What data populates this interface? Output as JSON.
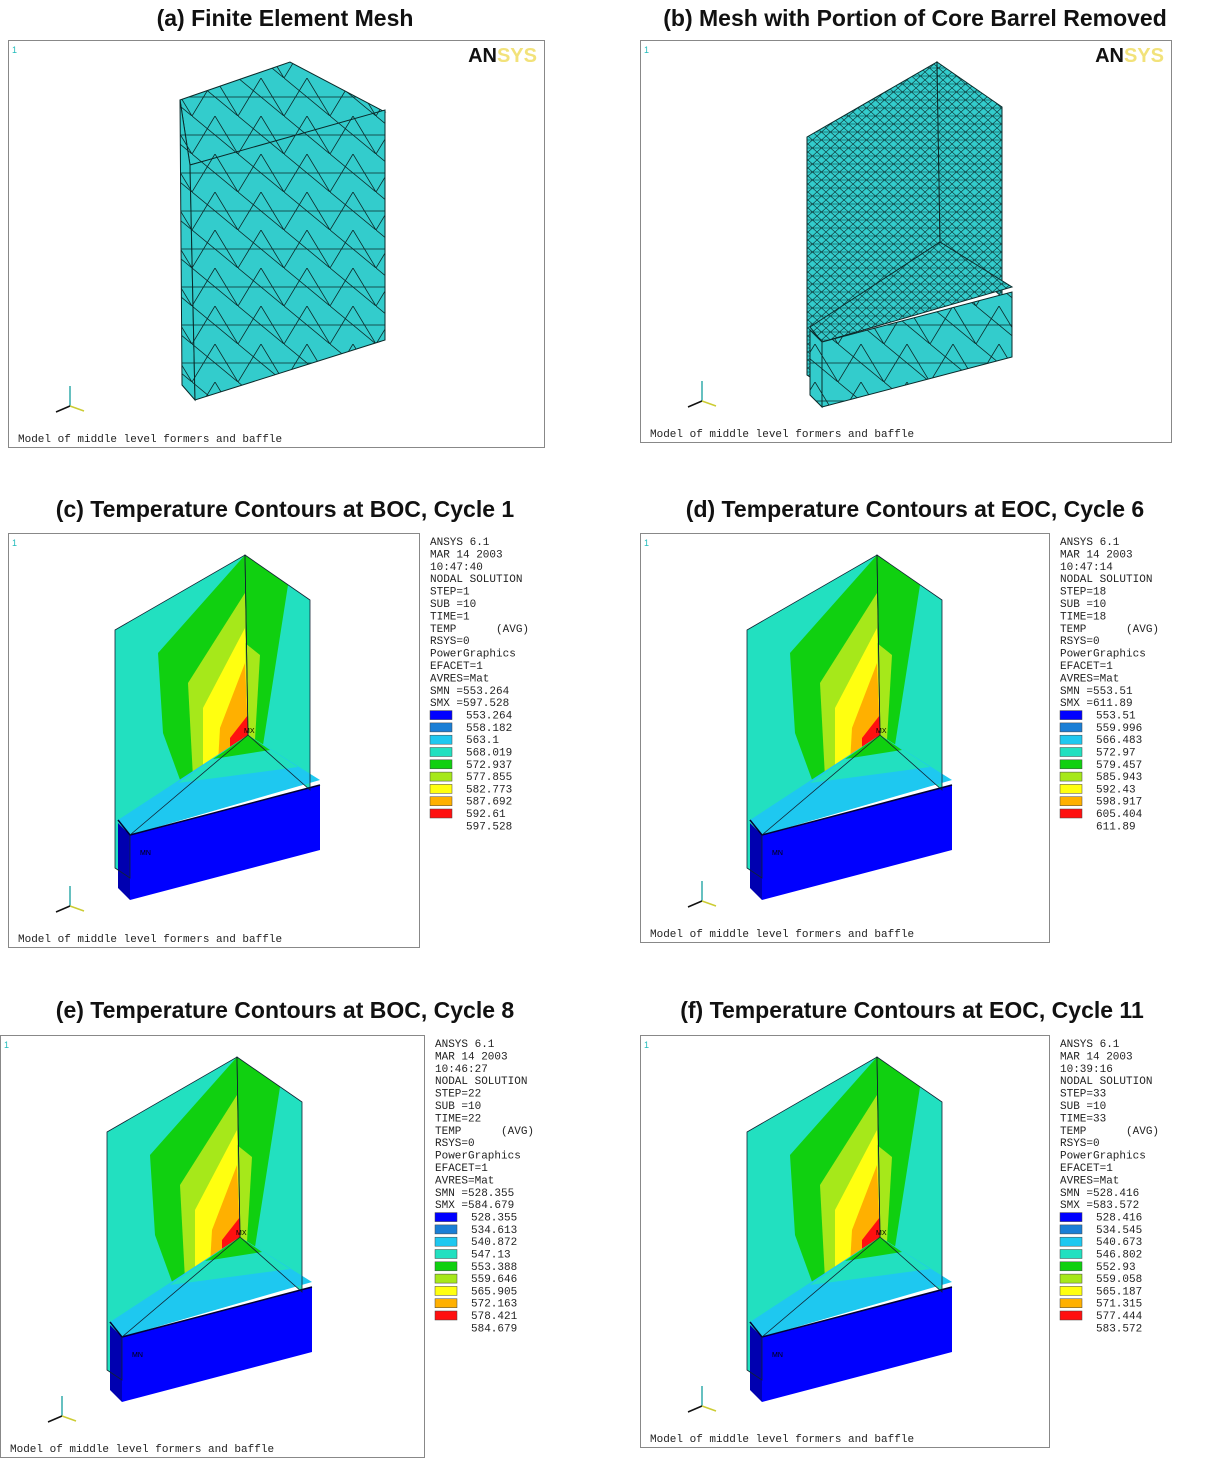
{
  "mesh_color": "#33cccc",
  "legend_colors": [
    "#0000ff",
    "#1a7fd6",
    "#1ec8f0",
    "#22e0c0",
    "#10d010",
    "#a6e81a",
    "#ffff10",
    "#ffb000",
    "#ff1010"
  ],
  "panels": [
    {
      "title": "(a) Finite Element Mesh",
      "window_number": "1",
      "logo": {
        "prefix": "AN",
        "suffix": "SYS"
      },
      "caption": "Model of middle level formers and baffle"
    },
    {
      "title": "(b) Mesh with Portion of Core Barrel Removed",
      "window_number": "1",
      "logo": {
        "prefix": "AN",
        "suffix": "SYS"
      },
      "caption": "Model of middle level formers and baffle"
    },
    {
      "title": "(c) Temperature Contours at BOC, Cycle 1",
      "window_number": "1",
      "caption": "Model of middle level formers and baffle",
      "min_marker": "MN",
      "max_marker": "MX",
      "info": [
        "ANSYS 6.1",
        "MAR 14 2003",
        "10:47:40",
        "NODAL SOLUTION",
        "STEP=1",
        "SUB =10",
        "TIME=1",
        "TEMP      (AVG)",
        "RSYS=0",
        "PowerGraphics",
        "EFACET=1",
        "AVRES=Mat",
        "SMN =553.264",
        "SMX =597.528"
      ],
      "legend_values": [
        553.264,
        558.182,
        563.1,
        568.019,
        572.937,
        577.855,
        582.773,
        587.692,
        592.61,
        597.528
      ]
    },
    {
      "title": "(d) Temperature Contours at EOC, Cycle 6",
      "window_number": "1",
      "caption": "Model of middle level formers and baffle",
      "min_marker": "MN",
      "max_marker": "MX",
      "info": [
        "ANSYS 6.1",
        "MAR 14 2003",
        "10:47:14",
        "NODAL SOLUTION",
        "STEP=18",
        "SUB =10",
        "TIME=18",
        "TEMP      (AVG)",
        "RSYS=0",
        "PowerGraphics",
        "EFACET=1",
        "AVRES=Mat",
        "SMN =553.51",
        "SMX =611.89"
      ],
      "legend_values": [
        553.51,
        559.996,
        566.483,
        572.97,
        579.457,
        585.943,
        592.43,
        598.917,
        605.404,
        611.89
      ]
    },
    {
      "title": "(e) Temperature Contours at BOC, Cycle 8",
      "window_number": "1",
      "caption": "Model of middle level formers and baffle",
      "min_marker": "MN",
      "max_marker": "MX",
      "info": [
        "ANSYS 6.1",
        "MAR 14 2003",
        "10:46:27",
        "NODAL SOLUTION",
        "STEP=22",
        "SUB =10",
        "TIME=22",
        "TEMP      (AVG)",
        "RSYS=0",
        "PowerGraphics",
        "EFACET=1",
        "AVRES=Mat",
        "SMN =528.355",
        "SMX =584.679"
      ],
      "legend_values": [
        528.355,
        534.613,
        540.872,
        547.13,
        553.388,
        559.646,
        565.905,
        572.163,
        578.421,
        584.679
      ]
    },
    {
      "title": "(f) Temperature Contours at EOC, Cycle 11",
      "window_number": "1",
      "caption": "Model of middle level formers and baffle",
      "min_marker": "MN",
      "max_marker": "MX",
      "info": [
        "ANSYS 6.1",
        "MAR 14 2003",
        "10:39:16",
        "NODAL SOLUTION",
        "STEP=33",
        "SUB =10",
        "TIME=33",
        "TEMP      (AVG)",
        "RSYS=0",
        "PowerGraphics",
        "EFACET=1",
        "AVRES=Mat",
        "SMN =528.416",
        "SMX =583.572"
      ],
      "legend_values": [
        528.416,
        534.545,
        540.673,
        546.802,
        552.93,
        559.058,
        565.187,
        571.315,
        577.444,
        583.572
      ]
    }
  ]
}
